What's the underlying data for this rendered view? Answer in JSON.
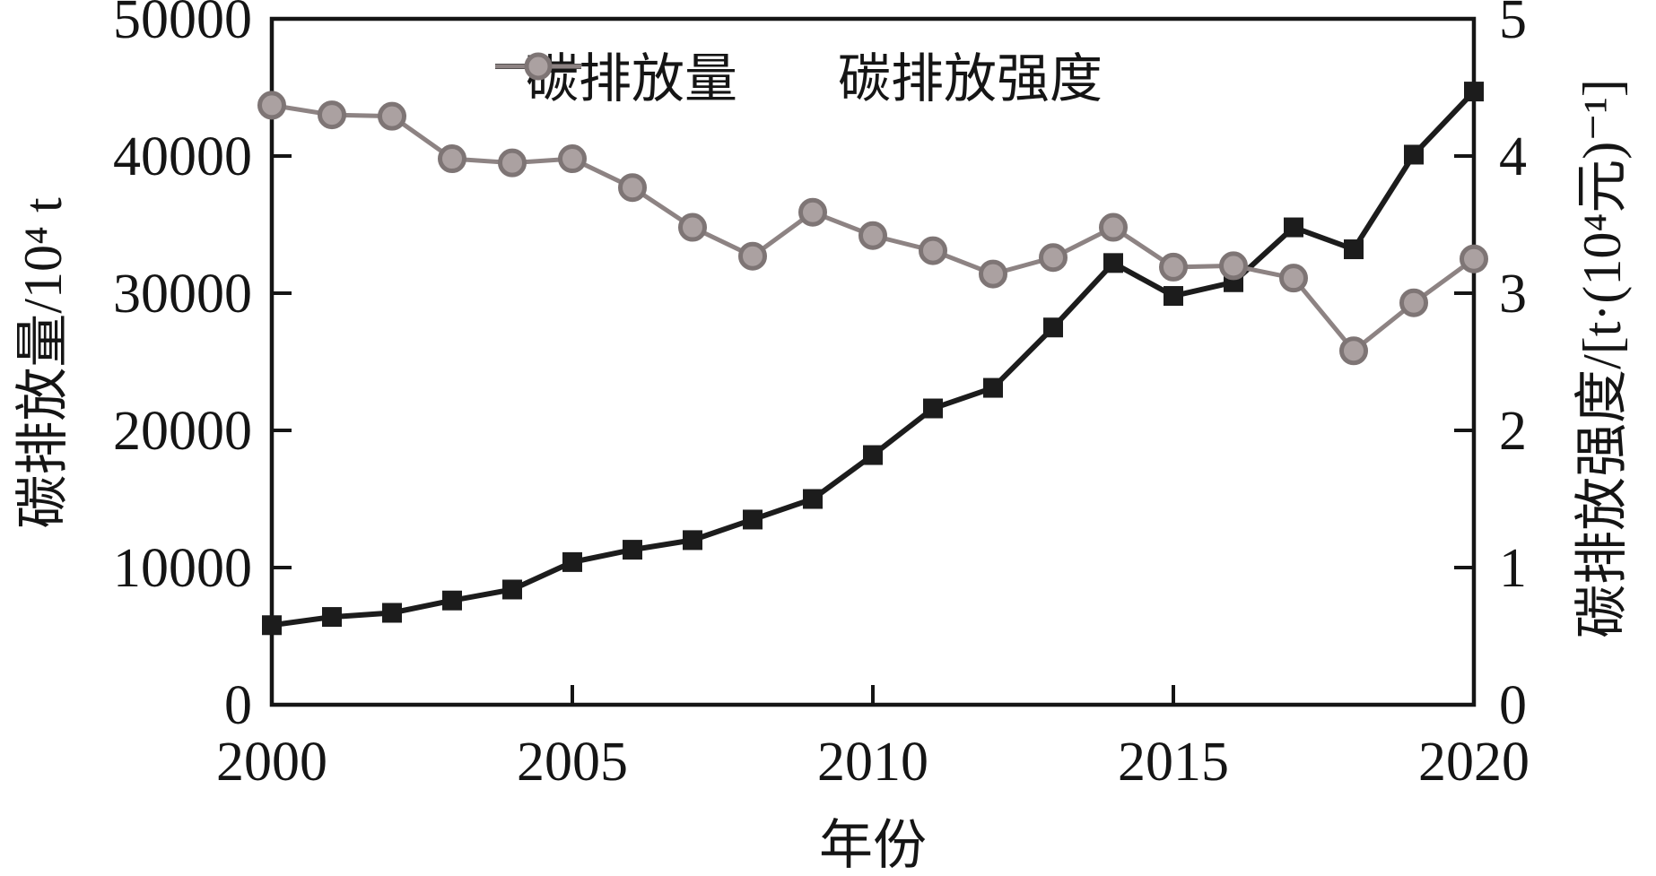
{
  "colors": {
    "axis": "#151515",
    "emissions_line": "#1c1c1c",
    "intensity_line": "#8d8383",
    "intensity_marker_fill": "#aba1a1",
    "intensity_marker_stroke": "#7e7575"
  },
  "chart_data": {
    "type": "line",
    "title": "",
    "xlabel": "年份",
    "ylabel_left": "碳排放量/10⁴ t",
    "ylabel_right": "碳排放强度/[t·(10⁴元)⁻¹]",
    "legend_position": "top-center",
    "grid": false,
    "x": [
      2000,
      2001,
      2002,
      2003,
      2004,
      2005,
      2006,
      2007,
      2008,
      2009,
      2010,
      2011,
      2012,
      2013,
      2014,
      2015,
      2016,
      2017,
      2018,
      2019,
      2020
    ],
    "x_axis": {
      "min": 2000,
      "max": 2020,
      "ticks": [
        2000,
        2005,
        2010,
        2015,
        2020
      ],
      "tick_labels": [
        "2000",
        "2005",
        "2010",
        "2015",
        "2020"
      ]
    },
    "left_axis": {
      "min": 0,
      "max": 50000,
      "ticks": [
        0,
        10000,
        20000,
        30000,
        40000,
        50000
      ],
      "tick_labels": [
        "0",
        "10000",
        "20000",
        "30000",
        "40000",
        "50000"
      ]
    },
    "right_axis": {
      "min": 0,
      "max": 5,
      "ticks": [
        0,
        1,
        2,
        3,
        4,
        5
      ],
      "tick_labels": [
        "0",
        "1",
        "2",
        "3",
        "4",
        "5"
      ]
    },
    "series": [
      {
        "name": "碳排放量",
        "axis": "left",
        "marker": "square",
        "units": "10⁴ t",
        "values": [
          5800,
          6400,
          6700,
          7600,
          8400,
          10400,
          11300,
          12000,
          13500,
          15000,
          18200,
          21600,
          23100,
          27500,
          32200,
          29800,
          30800,
          34800,
          33200,
          40100,
          44700
        ]
      },
      {
        "name": "碳排放强度",
        "axis": "right",
        "marker": "circle",
        "units": "t·(10⁴元)⁻¹",
        "values": [
          4.37,
          4.3,
          4.29,
          3.98,
          3.95,
          3.98,
          3.77,
          3.48,
          3.27,
          3.59,
          3.42,
          3.31,
          3.14,
          3.26,
          3.48,
          3.19,
          3.2,
          3.11,
          2.58,
          2.93,
          3.25
        ]
      }
    ]
  }
}
